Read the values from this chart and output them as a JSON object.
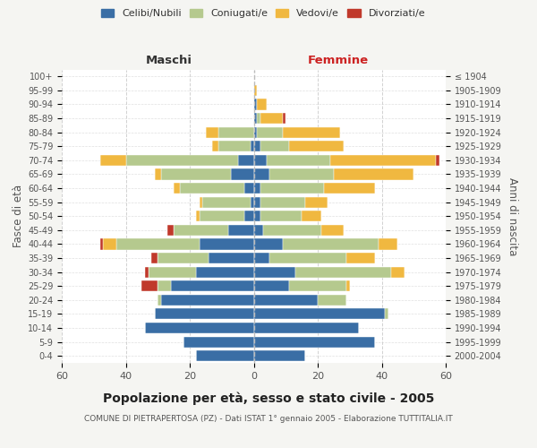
{
  "age_groups": [
    "0-4",
    "5-9",
    "10-14",
    "15-19",
    "20-24",
    "25-29",
    "30-34",
    "35-39",
    "40-44",
    "45-49",
    "50-54",
    "55-59",
    "60-64",
    "65-69",
    "70-74",
    "75-79",
    "80-84",
    "85-89",
    "90-94",
    "95-99",
    "100+"
  ],
  "birth_years": [
    "2000-2004",
    "1995-1999",
    "1990-1994",
    "1985-1989",
    "1980-1984",
    "1975-1979",
    "1970-1974",
    "1965-1969",
    "1960-1964",
    "1955-1959",
    "1950-1954",
    "1945-1949",
    "1940-1944",
    "1935-1939",
    "1930-1934",
    "1925-1929",
    "1920-1924",
    "1915-1919",
    "1910-1914",
    "1905-1909",
    "≤ 1904"
  ],
  "males": {
    "celibi": [
      18,
      22,
      34,
      31,
      29,
      26,
      18,
      14,
      17,
      8,
      3,
      1,
      3,
      7,
      5,
      1,
      0,
      0,
      0,
      0,
      0
    ],
    "coniugati": [
      0,
      0,
      0,
      0,
      1,
      4,
      15,
      16,
      26,
      17,
      14,
      15,
      20,
      22,
      35,
      10,
      11,
      0,
      0,
      0,
      0
    ],
    "vedovi": [
      0,
      0,
      0,
      0,
      0,
      0,
      0,
      0,
      4,
      0,
      1,
      1,
      2,
      2,
      8,
      2,
      4,
      0,
      0,
      0,
      0
    ],
    "divorziati": [
      0,
      0,
      0,
      0,
      0,
      5,
      1,
      2,
      1,
      2,
      0,
      0,
      0,
      0,
      0,
      0,
      0,
      0,
      0,
      0,
      0
    ]
  },
  "females": {
    "nubili": [
      16,
      38,
      33,
      41,
      20,
      11,
      13,
      5,
      9,
      3,
      2,
      2,
      2,
      5,
      4,
      2,
      1,
      1,
      1,
      0,
      0
    ],
    "coniugate": [
      0,
      0,
      0,
      1,
      9,
      18,
      30,
      24,
      30,
      18,
      13,
      14,
      20,
      20,
      20,
      9,
      8,
      1,
      0,
      0,
      0
    ],
    "vedove": [
      0,
      0,
      0,
      0,
      0,
      1,
      4,
      9,
      6,
      7,
      6,
      7,
      16,
      25,
      33,
      17,
      18,
      7,
      3,
      1,
      0
    ],
    "divorziate": [
      0,
      0,
      0,
      0,
      0,
      0,
      0,
      0,
      0,
      0,
      0,
      0,
      0,
      0,
      1,
      0,
      0,
      1,
      0,
      0,
      0
    ]
  },
  "colors": {
    "celibi": "#3a6ea5",
    "coniugati": "#b5c98e",
    "vedovi": "#f0b840",
    "divorziati": "#c0392b"
  },
  "xlim": 60,
  "title": "Popolazione per età, sesso e stato civile - 2005",
  "subtitle": "COMUNE DI PIETRAPERTOSA (PZ) - Dati ISTAT 1° gennaio 2005 - Elaborazione TUTTITALIA.IT",
  "ylabel_left": "Fasce di età",
  "ylabel_right": "Anni di nascita",
  "xlabel_left": "Maschi",
  "xlabel_right": "Femmine",
  "bg_color": "#f5f5f2",
  "plot_bg": "#ffffff"
}
